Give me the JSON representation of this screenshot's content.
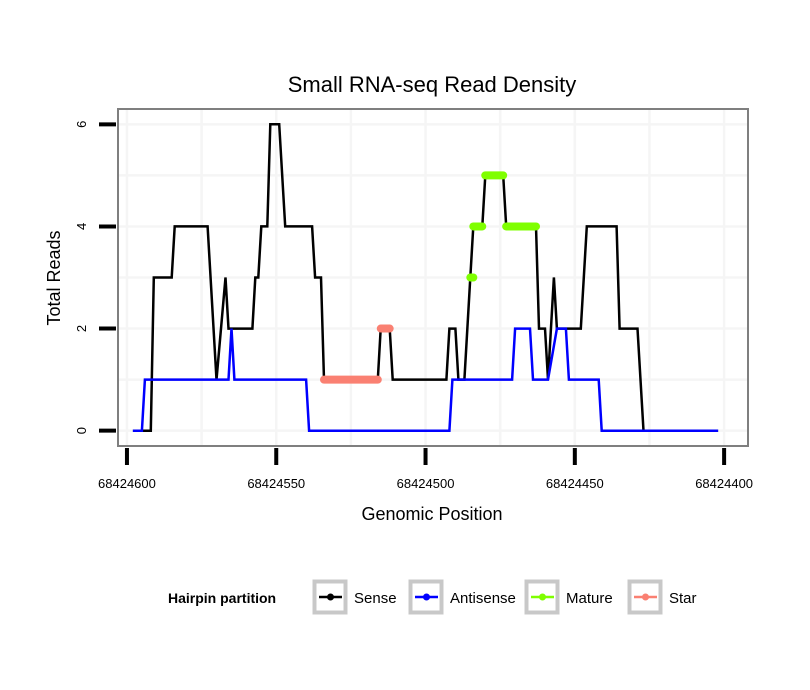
{
  "chart_data": {
    "type": "line",
    "title": "Small RNA-seq Read Density",
    "xlabel": "Genomic Position",
    "ylabel": "Total Reads",
    "x_reversed": true,
    "xlim": [
      68424603,
      68424392
    ],
    "ylim": [
      -0.3,
      6.3
    ],
    "x_ticks": [
      68424600,
      68424550,
      68424500,
      68424450,
      68424400
    ],
    "x_tick_labels": [
      "68424600",
      "68424550",
      "68424500",
      "68424450",
      "68424400"
    ],
    "y_ticks": [
      0,
      2,
      4,
      6
    ],
    "y_tick_labels": [
      "0",
      "2",
      "4",
      "6"
    ],
    "grid": true,
    "legend": {
      "title": "Hairpin partition",
      "position": "bottom",
      "entries": [
        "Sense",
        "Antisense",
        "Mature",
        "Star"
      ]
    },
    "series": [
      {
        "name": "Sense",
        "color": "#000000",
        "points": [
          [
            68424598,
            0
          ],
          [
            68424592,
            0
          ],
          [
            68424591,
            3
          ],
          [
            68424585,
            3
          ],
          [
            68424584,
            4
          ],
          [
            68424573,
            4
          ],
          [
            68424570,
            1
          ],
          [
            68424567,
            3
          ],
          [
            68424566,
            2
          ],
          [
            68424558,
            2
          ],
          [
            68424557,
            3
          ],
          [
            68424556,
            3
          ],
          [
            68424555,
            4
          ],
          [
            68424553,
            4
          ],
          [
            68424552,
            6
          ],
          [
            68424549,
            6
          ],
          [
            68424547,
            4
          ],
          [
            68424538,
            4
          ],
          [
            68424537,
            3
          ],
          [
            68424535,
            3
          ],
          [
            68424534,
            1
          ],
          [
            68424516,
            1
          ],
          [
            68424515,
            2
          ],
          [
            68424512,
            2
          ],
          [
            68424511,
            1
          ],
          [
            68424493,
            1
          ],
          [
            68424492,
            2
          ],
          [
            68424490,
            2
          ],
          [
            68424489,
            1
          ],
          [
            68424487,
            1
          ],
          [
            68424485,
            3
          ],
          [
            68424484,
            4
          ],
          [
            68424481,
            4
          ],
          [
            68424480,
            5
          ],
          [
            68424474,
            5
          ],
          [
            68424473,
            4
          ],
          [
            68424463,
            4
          ],
          [
            68424462,
            2
          ],
          [
            68424460,
            2
          ],
          [
            68424459,
            1
          ],
          [
            68424457,
            3
          ],
          [
            68424456,
            2
          ],
          [
            68424448,
            2
          ],
          [
            68424446,
            4
          ],
          [
            68424436,
            4
          ],
          [
            68424435,
            2
          ],
          [
            68424429,
            2
          ],
          [
            68424427,
            0
          ],
          [
            68424402,
            0
          ]
        ]
      },
      {
        "name": "Antisense",
        "color": "#0000ff",
        "points": [
          [
            68424598,
            0
          ],
          [
            68424595,
            0
          ],
          [
            68424594,
            1
          ],
          [
            68424566,
            1
          ],
          [
            68424565,
            2
          ],
          [
            68424564,
            1
          ],
          [
            68424540,
            1
          ],
          [
            68424539,
            0
          ],
          [
            68424492,
            0
          ],
          [
            68424491,
            1
          ],
          [
            68424471,
            1
          ],
          [
            68424470,
            2
          ],
          [
            68424465,
            2
          ],
          [
            68424464,
            1
          ],
          [
            68424459,
            1
          ],
          [
            68424456,
            2
          ],
          [
            68424453,
            2
          ],
          [
            68424452,
            1
          ],
          [
            68424442,
            1
          ],
          [
            68424441,
            0
          ],
          [
            68424402,
            0
          ]
        ]
      },
      {
        "name": "Mature",
        "color": "#7fff00",
        "segments": [
          [
            [
              68424485,
              3
            ],
            [
              68424484,
              3
            ]
          ],
          [
            [
              68424484,
              4
            ],
            [
              68424481,
              4
            ]
          ],
          [
            [
              68424480,
              5
            ],
            [
              68424474,
              5
            ]
          ],
          [
            [
              68424473,
              4
            ],
            [
              68424463,
              4
            ]
          ]
        ]
      },
      {
        "name": "Star",
        "color": "#fa8072",
        "segments": [
          [
            [
              68424534,
              1
            ],
            [
              68424516,
              1
            ]
          ],
          [
            [
              68424515,
              2
            ],
            [
              68424512,
              2
            ]
          ]
        ]
      }
    ]
  }
}
